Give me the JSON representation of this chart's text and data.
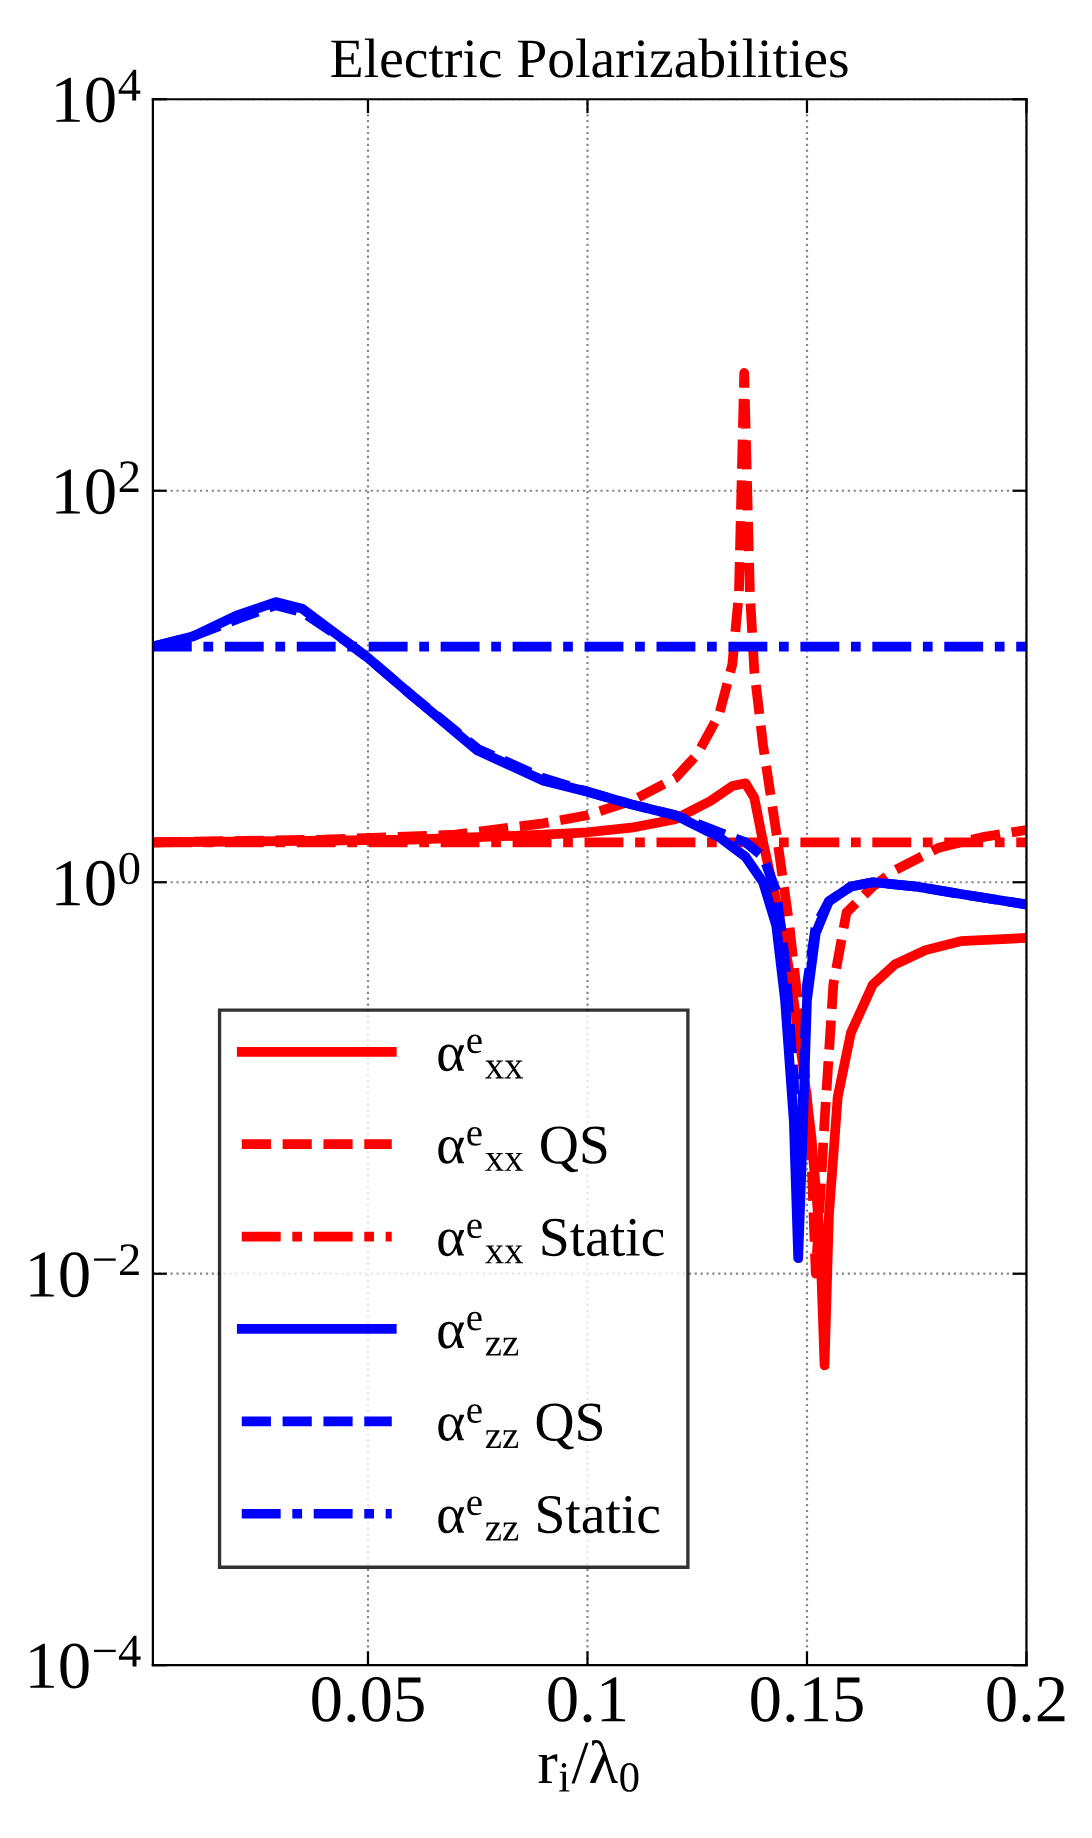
{
  "chart_data": {
    "type": "line",
    "title": "Electric Polarizabilities",
    "xlabel": "r$_{i}$/λ$_{0}$",
    "xlim": [
      0.001,
      0.2
    ],
    "xticks": [
      0.05,
      0.1,
      0.15,
      0.2
    ],
    "ylim": [
      0.0001,
      10000
    ],
    "log": "y",
    "yticks": [
      {
        "value": 0.0001,
        "label": "10$^{−4}$"
      },
      {
        "value": 0.01,
        "label": "10$^{−2}$"
      },
      {
        "value": 1,
        "label": "10$^{0}$"
      },
      {
        "value": 100,
        "label": "10$^{2}$"
      },
      {
        "value": 10000,
        "label": "10$^{4}$"
      }
    ],
    "grid": true,
    "legend": "bottom left",
    "series": [
      {
        "name": "α$^{e}$$_{xx}$",
        "color": "#ff0000",
        "line_style": "solid",
        "x": [
          0.001,
          0.03,
          0.06,
          0.09,
          0.1,
          0.11,
          0.12,
          0.128,
          0.133,
          0.136,
          0.138,
          0.14,
          0.143,
          0.146,
          0.149,
          0.151,
          0.153,
          0.154,
          0.155,
          0.157,
          0.16,
          0.165,
          0.17,
          0.177,
          0.185,
          0.2
        ],
        "values": [
          1.6,
          1.62,
          1.65,
          1.75,
          1.8,
          1.9,
          2.1,
          2.6,
          3.1,
          3.2,
          2.7,
          1.6,
          0.8,
          0.35,
          0.12,
          0.05,
          0.015,
          0.0034,
          0.02,
          0.08,
          0.17,
          0.3,
          0.38,
          0.45,
          0.5,
          0.52
        ]
      },
      {
        "name": "α$^{e}$$_{xx}$ QS",
        "color": "#ff0000",
        "line_style": "dashed",
        "x": [
          0.001,
          0.04,
          0.07,
          0.09,
          0.1,
          0.11,
          0.12,
          0.125,
          0.13,
          0.133,
          0.1345,
          0.1357,
          0.137,
          0.138,
          0.14,
          0.143,
          0.146,
          0.149,
          0.151,
          0.152,
          0.154,
          0.156,
          0.159,
          0.165,
          0.17,
          0.18,
          0.19,
          0.2
        ],
        "values": [
          1.6,
          1.65,
          1.75,
          2.0,
          2.2,
          2.6,
          3.4,
          4.5,
          7.2,
          13,
          30,
          400,
          30,
          12,
          5,
          1.8,
          0.6,
          0.15,
          0.04,
          0.01,
          0.06,
          0.3,
          0.7,
          0.95,
          1.15,
          1.5,
          1.7,
          1.85
        ]
      },
      {
        "name": "α$^{e}$$_{xx}$ Static",
        "color": "#ff0000",
        "line_style": "dashdot",
        "x": [
          0.001,
          0.2
        ],
        "values": [
          1.6,
          1.6
        ]
      },
      {
        "name": "α$^{e}$$_{zz}$",
        "color": "#0000ff",
        "line_style": "solid",
        "x": [
          0.001,
          0.01,
          0.02,
          0.029,
          0.035,
          0.045,
          0.05,
          0.06,
          0.075,
          0.09,
          0.1,
          0.11,
          0.12,
          0.13,
          0.136,
          0.14,
          0.143,
          0.145,
          0.147,
          0.148,
          0.149,
          0.15,
          0.152,
          0.155,
          0.16,
          0.165,
          0.175,
          0.185,
          0.2
        ],
        "values": [
          16,
          18,
          23,
          27,
          25,
          17,
          14,
          9,
          4.7,
          3.3,
          2.9,
          2.5,
          2.2,
          1.7,
          1.35,
          1.0,
          0.6,
          0.25,
          0.06,
          0.012,
          0.05,
          0.25,
          0.55,
          0.8,
          0.95,
          1.0,
          0.95,
          0.87,
          0.77
        ]
      },
      {
        "name": "α$^{e}$$_{zz}$ QS",
        "color": "#0000ff",
        "line_style": "dashed",
        "x": [
          0.001,
          0.01,
          0.02,
          0.029,
          0.035,
          0.045,
          0.05,
          0.06,
          0.075,
          0.09,
          0.1,
          0.11,
          0.12,
          0.13,
          0.136,
          0.14,
          0.143,
          0.145,
          0.147,
          0.148,
          0.149,
          0.15,
          0.152,
          0.155,
          0.16,
          0.165,
          0.175,
          0.185,
          0.2
        ],
        "values": [
          16,
          18,
          22,
          26,
          24,
          17,
          14,
          9,
          4.8,
          3.4,
          2.9,
          2.5,
          2.2,
          1.8,
          1.6,
          1.35,
          0.9,
          0.4,
          0.1,
          0.02,
          0.08,
          0.3,
          0.6,
          0.8,
          0.95,
          1.0,
          0.95,
          0.87,
          0.77
        ]
      },
      {
        "name": "α$^{e}$$_{zz}$ Static",
        "color": "#0000ff",
        "line_style": "dashdot",
        "x": [
          0.001,
          0.2
        ],
        "values": [
          16,
          16
        ]
      }
    ]
  }
}
